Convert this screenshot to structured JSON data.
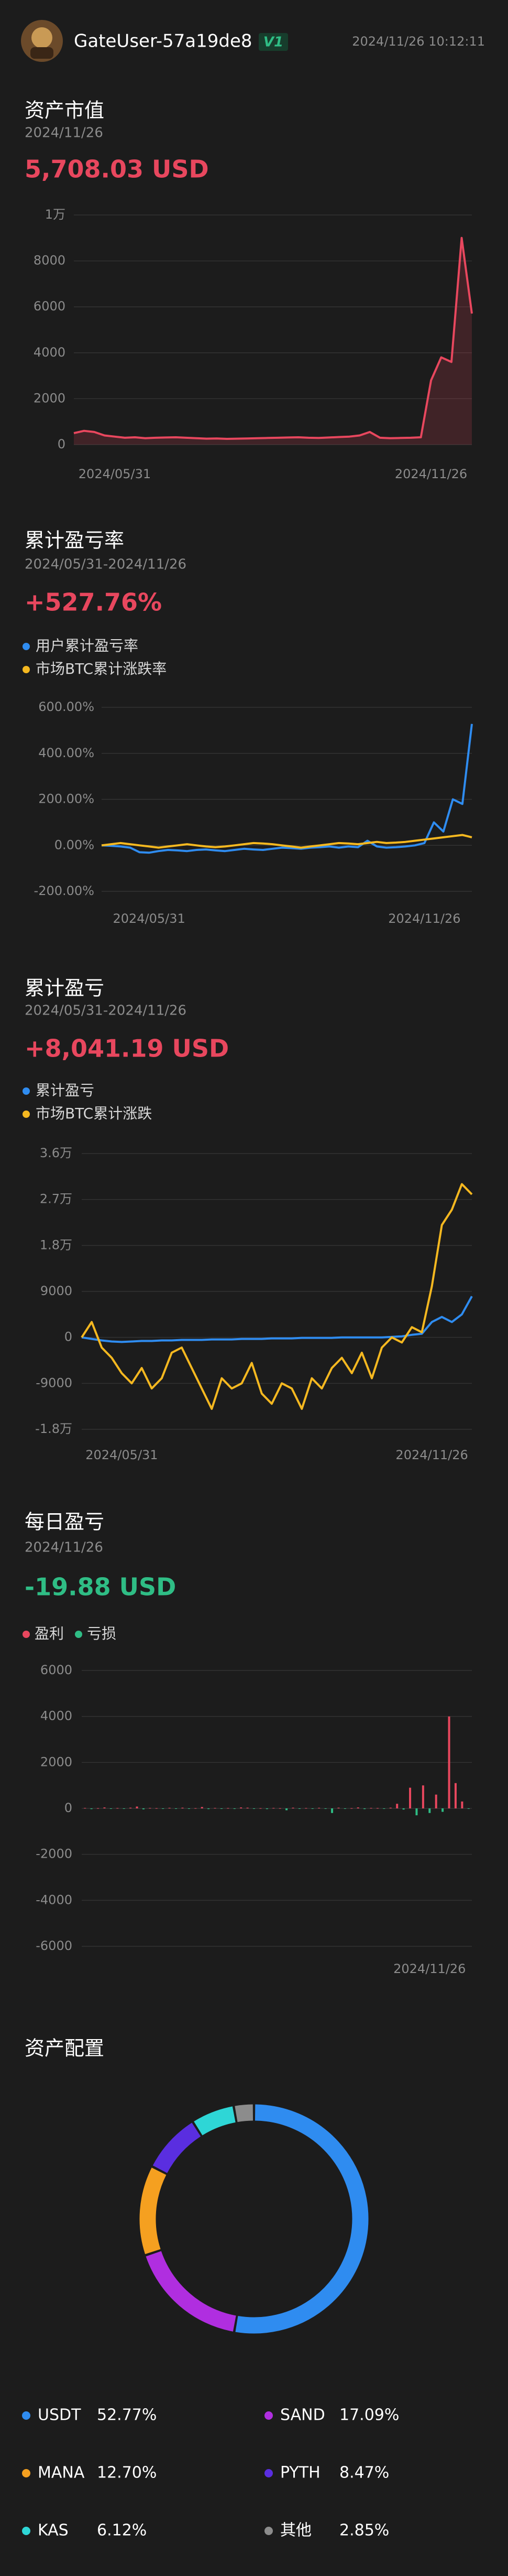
{
  "header": {
    "username": "GateUser-57a19de8",
    "badge": "V1",
    "timestamp": "2024/11/26 10:12:11"
  },
  "chart_data": [
    {
      "type": "line",
      "title": "资产市值",
      "subtitle": "2024/11/26",
      "headline": "5,708.03 USD",
      "headline_color": "#e8475e",
      "categories": [
        null,
        null,
        null,
        null,
        "2024/05/31",
        null,
        null,
        null,
        null,
        null,
        null,
        null,
        null,
        null,
        null,
        null,
        null,
        null,
        null,
        null,
        null,
        null,
        null,
        null,
        null,
        null,
        null,
        null,
        null,
        null,
        null,
        null,
        null,
        null,
        null,
        "2024/11/26",
        null,
        null,
        null,
        null
      ],
      "series": [
        {
          "name": "资产市值",
          "color": "#e8475e",
          "area": true,
          "values": [
            500,
            600,
            550,
            400,
            350,
            300,
            320,
            280,
            300,
            310,
            320,
            300,
            280,
            260,
            270,
            250,
            260,
            270,
            280,
            290,
            300,
            310,
            320,
            300,
            290,
            310,
            330,
            350,
            400,
            550,
            300,
            280,
            290,
            300,
            320,
            2800,
            3800,
            3600,
            9000,
            5708.03
          ]
        }
      ],
      "ylim": [
        0,
        10000
      ],
      "yticks": [
        {
          "value": 10000,
          "label": "1万"
        },
        8000,
        6000,
        4000,
        2000,
        0
      ],
      "grid": true,
      "legend": false
    },
    {
      "type": "line",
      "title": "累计盈亏率",
      "subtitle": "2024/05/31-2024/11/26",
      "headline": "+527.76%",
      "headline_color": "#e8475e",
      "categories": [
        null,
        null,
        null,
        null,
        null,
        "2024/05/31",
        null,
        null,
        null,
        null,
        null,
        null,
        null,
        null,
        null,
        null,
        null,
        null,
        null,
        null,
        null,
        null,
        null,
        null,
        null,
        null,
        null,
        null,
        null,
        null,
        null,
        null,
        null,
        null,
        "2024/11/26",
        null,
        null,
        null,
        null,
        null
      ],
      "series": [
        {
          "name": "用户累计盈亏率",
          "color": "#2f8cf0",
          "values": [
            0,
            -2,
            -5,
            -10,
            -30,
            -32,
            -25,
            -20,
            -22,
            -25,
            -20,
            -18,
            -22,
            -25,
            -20,
            -15,
            -18,
            -20,
            -15,
            -10,
            -12,
            -15,
            -10,
            -8,
            -5,
            -10,
            -5,
            -8,
            20,
            -5,
            -10,
            -8,
            -5,
            0,
            10,
            100,
            60,
            200,
            180,
            527.76
          ]
        },
        {
          "name": "市场BTC累计涨跌率",
          "color": "#f5b820",
          "values": [
            0,
            5,
            10,
            5,
            0,
            -5,
            -10,
            -5,
            0,
            5,
            0,
            -5,
            -8,
            -5,
            0,
            5,
            10,
            8,
            5,
            0,
            -5,
            -10,
            -5,
            0,
            5,
            10,
            8,
            5,
            10,
            15,
            10,
            12,
            15,
            20,
            25,
            30,
            35,
            40,
            45,
            35
          ]
        }
      ],
      "ylim": [
        -200,
        600
      ],
      "yticks": [
        {
          "value": 600,
          "label": "600.00%"
        },
        {
          "value": 400,
          "label": "400.00%"
        },
        {
          "value": 200,
          "label": "200.00%"
        },
        {
          "value": 0,
          "label": "0.00%"
        },
        {
          "value": -200,
          "label": "-200.00%"
        }
      ],
      "grid": true,
      "legend": true
    },
    {
      "type": "line",
      "title": "累计盈亏",
      "subtitle": "2024/05/31-2024/11/26",
      "headline": "+8,041.19 USD",
      "headline_color": "#e8475e",
      "categories": [
        null,
        null,
        null,
        null,
        "2024/05/31",
        null,
        null,
        null,
        null,
        null,
        null,
        null,
        null,
        null,
        null,
        null,
        null,
        null,
        null,
        null,
        null,
        null,
        null,
        null,
        null,
        null,
        null,
        null,
        null,
        null,
        null,
        null,
        null,
        null,
        null,
        "2024/11/26",
        null,
        null,
        null,
        null
      ],
      "series": [
        {
          "name": "累计盈亏",
          "color": "#2f8cf0",
          "values": [
            0,
            -300,
            -600,
            -800,
            -900,
            -800,
            -700,
            -700,
            -600,
            -600,
            -500,
            -500,
            -500,
            -400,
            -400,
            -400,
            -300,
            -300,
            -300,
            -200,
            -200,
            -200,
            -100,
            -100,
            -100,
            -100,
            0,
            0,
            0,
            0,
            0,
            100,
            200,
            500,
            700,
            3000,
            4000,
            3000,
            4500,
            8041.19
          ]
        },
        {
          "name": "市场BTC累计涨跌",
          "color": "#f5b820",
          "values": [
            0,
            3000,
            -2000,
            -4000,
            -7000,
            -9000,
            -6000,
            -10000,
            -8000,
            -3000,
            -2000,
            -6000,
            -10000,
            -14000,
            -8000,
            -10000,
            -9000,
            -5000,
            -11000,
            -13000,
            -9000,
            -10000,
            -14000,
            -8000,
            -10000,
            -6000,
            -4000,
            -7000,
            -3000,
            -8000,
            -2000,
            0,
            -1000,
            2000,
            1000,
            10000,
            22000,
            25000,
            30000,
            28000
          ]
        }
      ],
      "ylim": [
        -18000,
        36000
      ],
      "yticks": [
        {
          "value": 36000,
          "label": "3.6万"
        },
        {
          "value": 27000,
          "label": "2.7万"
        },
        {
          "value": 18000,
          "label": "1.8万"
        },
        9000,
        0,
        -9000,
        {
          "value": -18000,
          "label": "-1.8万"
        }
      ],
      "grid": true,
      "legend": true
    },
    {
      "type": "bar",
      "title": "每日盈亏",
      "subtitle": "2024/11/26",
      "headline": "-19.88 USD",
      "headline_color": "#2fbd85",
      "categories": [
        null,
        null,
        null,
        null,
        null,
        null,
        null,
        null,
        null,
        null,
        null,
        null,
        null,
        null,
        null,
        null,
        null,
        null,
        null,
        null,
        null,
        null,
        null,
        null,
        null,
        null,
        null,
        null,
        null,
        null,
        null,
        null,
        null,
        null,
        null,
        null,
        null,
        null,
        null,
        null,
        null,
        null,
        null,
        null,
        null,
        null,
        null,
        null,
        null,
        null,
        null,
        null,
        null,
        "2024/11/26",
        null,
        null,
        null,
        null,
        null,
        null
      ],
      "values": [
        20,
        -30,
        10,
        40,
        -20,
        15,
        -10,
        30,
        80,
        -40,
        20,
        10,
        -15,
        25,
        -10,
        30,
        -20,
        10,
        60,
        -30,
        20,
        -10,
        15,
        -25,
        40,
        30,
        -20,
        10,
        -30,
        20,
        10,
        -80,
        30,
        -20,
        15,
        -10,
        25,
        -15,
        -200,
        30,
        -20,
        10,
        40,
        -30,
        20,
        15,
        -10,
        30,
        200,
        -50,
        900,
        -300,
        1000,
        -200,
        600,
        -150,
        4000,
        1100,
        300,
        -19.88
      ],
      "legend": [
        {
          "name": "盈利",
          "color": "#e8475e"
        },
        {
          "name": "亏损",
          "color": "#2fbd85"
        }
      ],
      "ylim": [
        -6000,
        6000
      ],
      "yticks": [
        6000,
        4000,
        2000,
        0,
        -2000,
        -4000,
        -6000
      ],
      "grid": true
    },
    {
      "type": "pie",
      "title": "资产配置",
      "donut": true,
      "categories": [
        "USDT",
        "SAND",
        "MANA",
        "PYTH",
        "KAS",
        "其他"
      ],
      "values": [
        52.77,
        17.09,
        12.7,
        8.47,
        6.12,
        2.85
      ],
      "value_labels": [
        "52.77%",
        "17.09%",
        "12.70%",
        "8.47%",
        "6.12%",
        "2.85%"
      ],
      "colors": [
        "#2f8cf0",
        "#b02ee0",
        "#f5a020",
        "#5a2ee0",
        "#2ed6d6",
        "#8c8c8c"
      ]
    }
  ]
}
